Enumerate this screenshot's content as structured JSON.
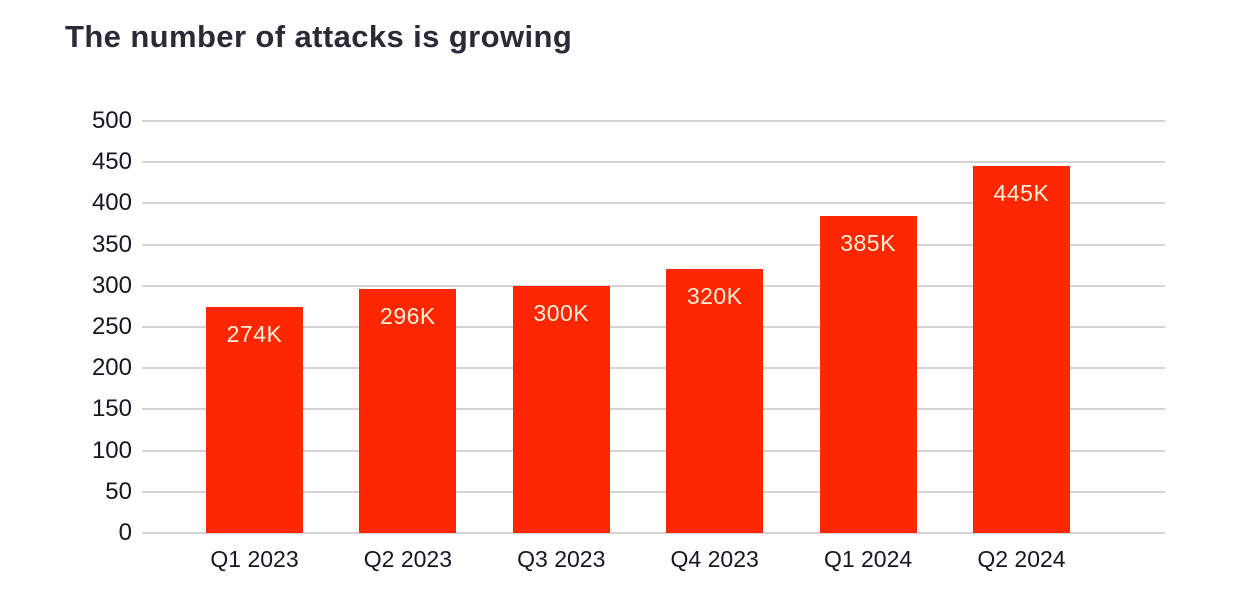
{
  "page": {
    "title": "The number of attacks is growing"
  },
  "chart_data": {
    "type": "bar",
    "title": "The number of attacks is growing",
    "categories": [
      "Q1 2023",
      "Q2 2023",
      "Q3 2023",
      "Q4 2023",
      "Q1 2024",
      "Q2 2024"
    ],
    "values": [
      274,
      296,
      300,
      320,
      385,
      445
    ],
    "bar_labels": [
      "274K",
      "296K",
      "300K",
      "320K",
      "385K",
      "445K"
    ],
    "xlabel": "",
    "ylabel": "",
    "ylim": [
      0,
      500
    ],
    "yticks": [
      0,
      50,
      100,
      150,
      200,
      250,
      300,
      350,
      400,
      450,
      500
    ],
    "grid": "horizontal",
    "legend": "none",
    "colors": {
      "bar": "#FF2600",
      "bar_label": "#FCF1D9",
      "title": "#2B2A37",
      "axis_text": "#17161F",
      "gridline": "#D4D4D8",
      "background": "#FFFFFF"
    }
  }
}
